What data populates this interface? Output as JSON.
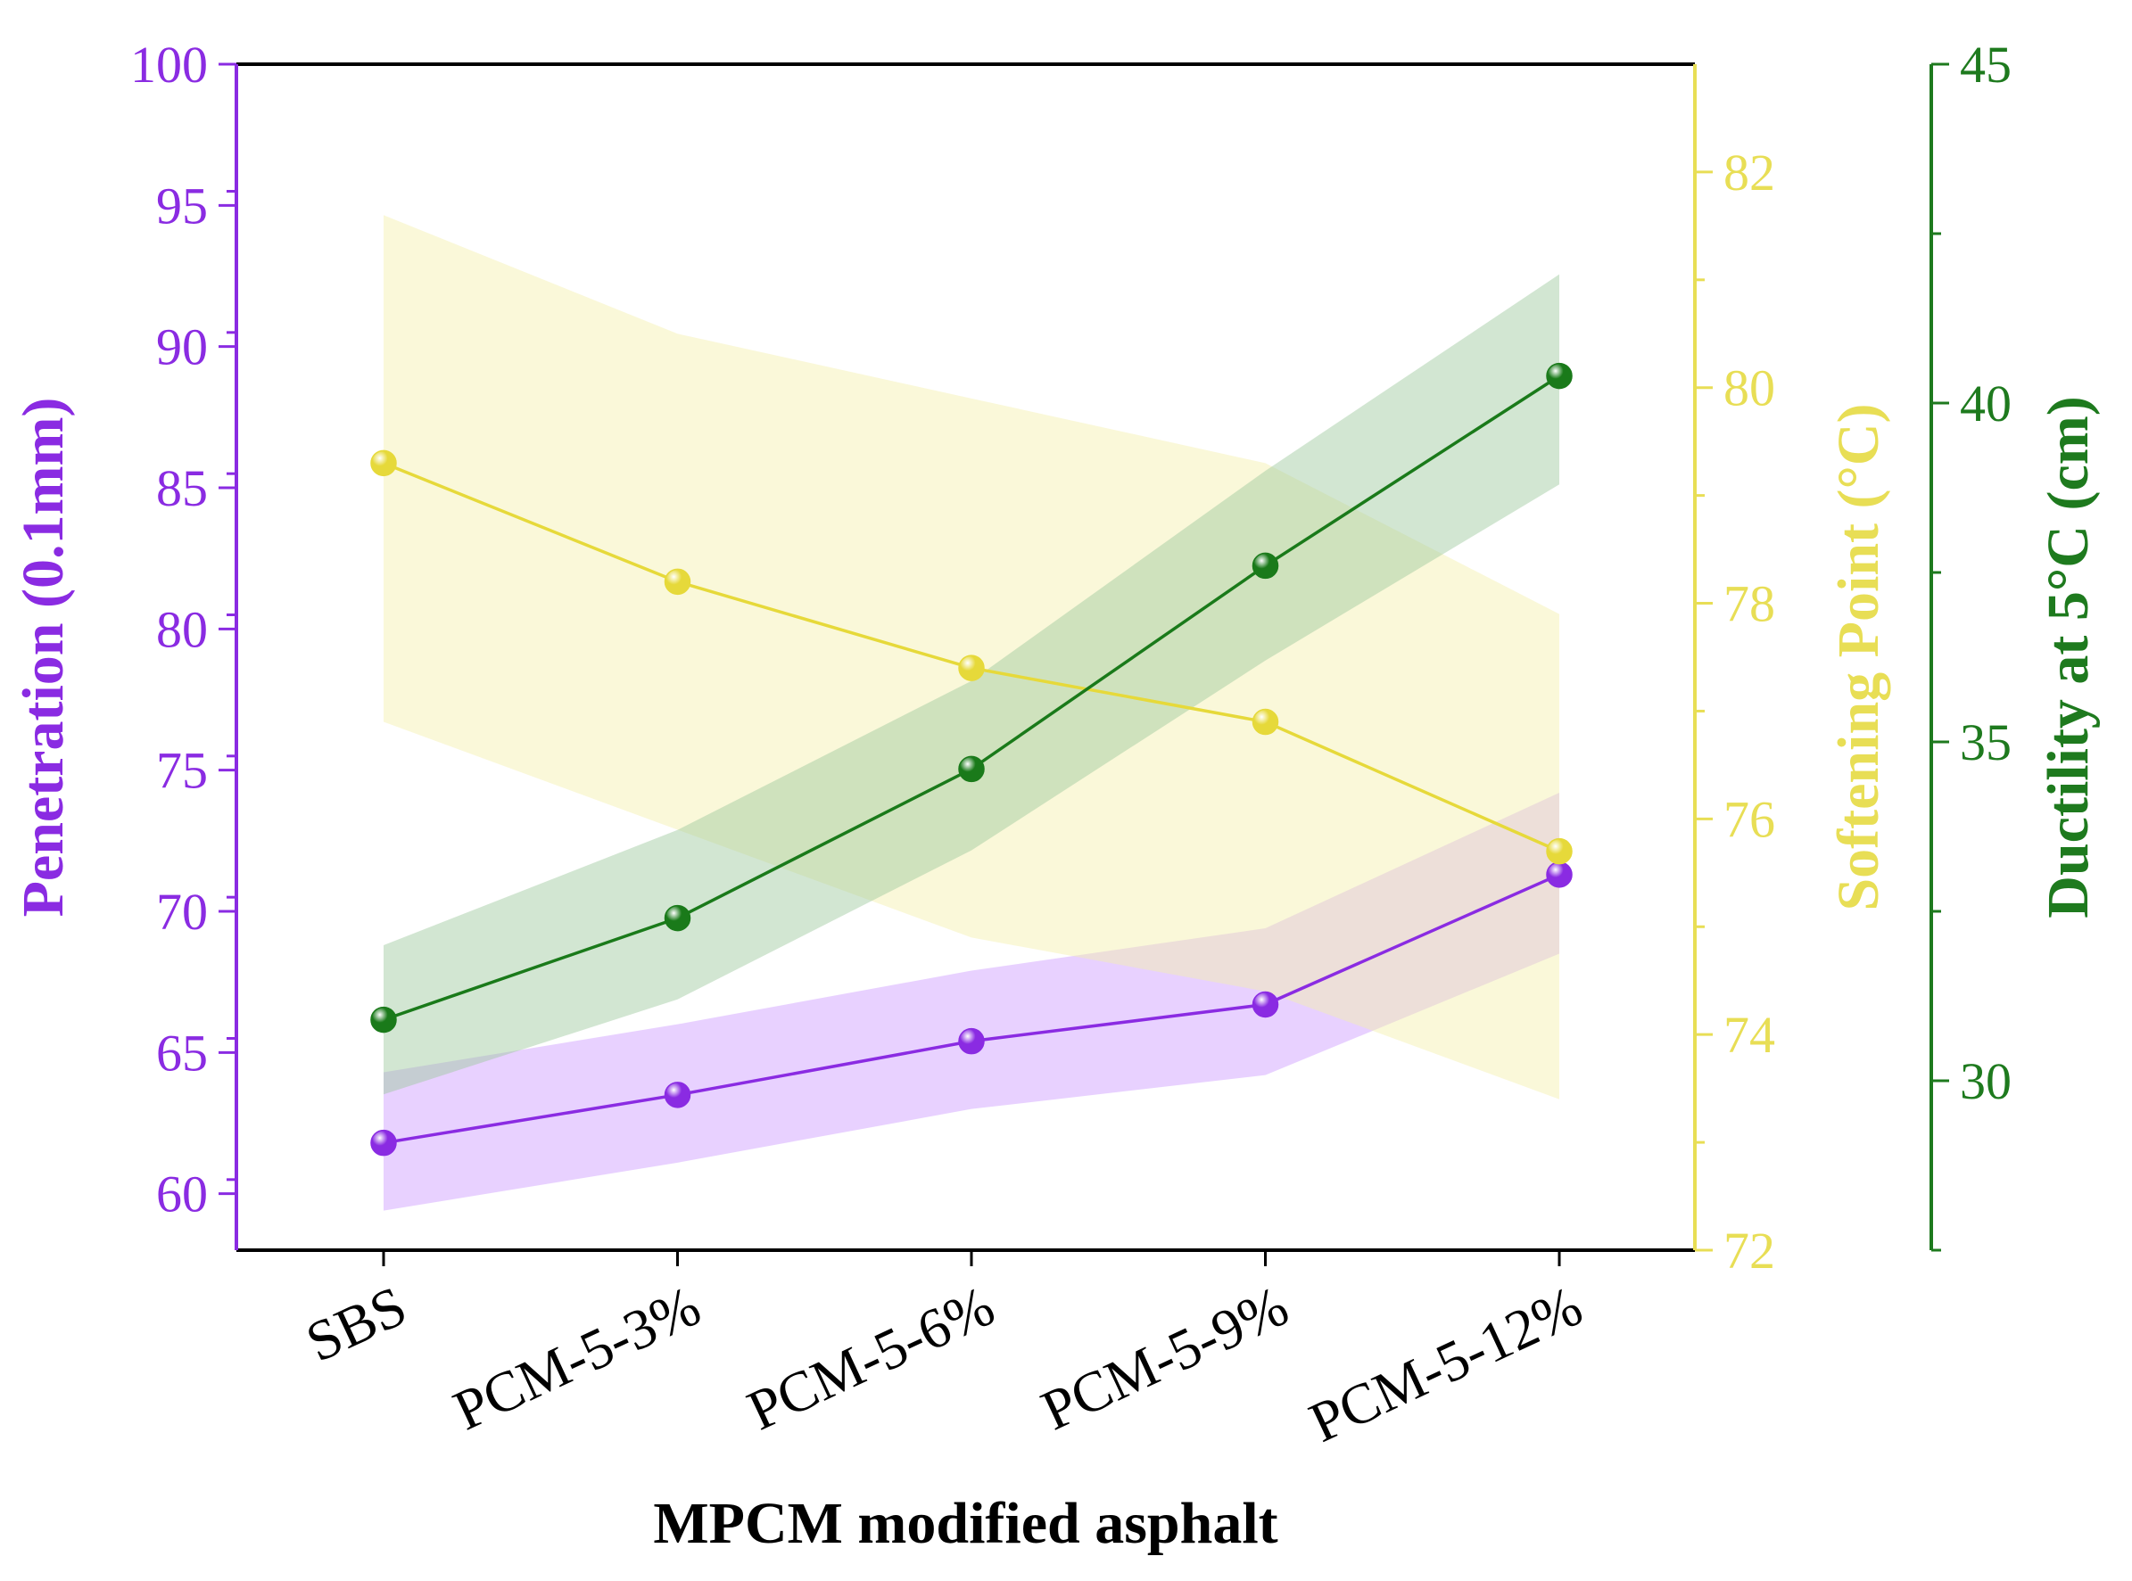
{
  "chart_data": {
    "type": "line",
    "xlabel": "MPCM modified asphalt",
    "categories": [
      "SBS",
      "PCM-5-3%",
      "PCM-5-6%",
      "PCM-5-9%",
      "PCM-5-12%"
    ],
    "axes": {
      "penetration": {
        "label": "Penetration (0.1mm)",
        "range": [
          58,
          100
        ],
        "ticks": [
          60,
          65,
          70,
          75,
          80,
          85,
          90,
          95,
          100
        ],
        "color": "#8a2be2",
        "side": "left"
      },
      "softening": {
        "label": "Softening Point (°C)",
        "range": [
          72,
          83
        ],
        "ticks": [
          72,
          74,
          76,
          78,
          80,
          82
        ],
        "color": "#e8de55",
        "side": "right"
      },
      "ductility": {
        "label": "Ductility at 5°C (cm)",
        "range": [
          27.5,
          45
        ],
        "ticks": [
          30,
          35,
          40,
          45
        ],
        "color": "#1e7a1e",
        "side": "far-right"
      }
    },
    "series": [
      {
        "name": "Penetration",
        "axis": "penetration",
        "color": "#8a2be2",
        "band_color": "#cc99ff",
        "values": [
          61.8,
          63.5,
          65.4,
          66.7,
          71.3
        ],
        "band_low": [
          59.4,
          61.1,
          63.0,
          64.2,
          68.5
        ],
        "band_high": [
          64.3,
          66.0,
          67.9,
          69.4,
          74.2
        ]
      },
      {
        "name": "Softening Point",
        "axis": "softening",
        "color": "#e6d93a",
        "band_color": "#f5efaa",
        "values": [
          79.3,
          78.2,
          77.4,
          76.9,
          75.7
        ],
        "band_low": [
          76.9,
          75.9,
          74.9,
          74.4,
          73.4
        ],
        "band_high": [
          81.6,
          80.5,
          79.9,
          79.3,
          77.9
        ]
      },
      {
        "name": "Ductility",
        "axis": "ductility",
        "color": "#1a7a1a",
        "band_color": "#9cc79c",
        "values": [
          30.9,
          32.4,
          34.6,
          37.6,
          40.4
        ],
        "band_low": [
          29.8,
          31.2,
          33.4,
          36.2,
          38.8
        ],
        "band_high": [
          32.0,
          33.7,
          35.9,
          39.0,
          41.9
        ]
      }
    ]
  }
}
